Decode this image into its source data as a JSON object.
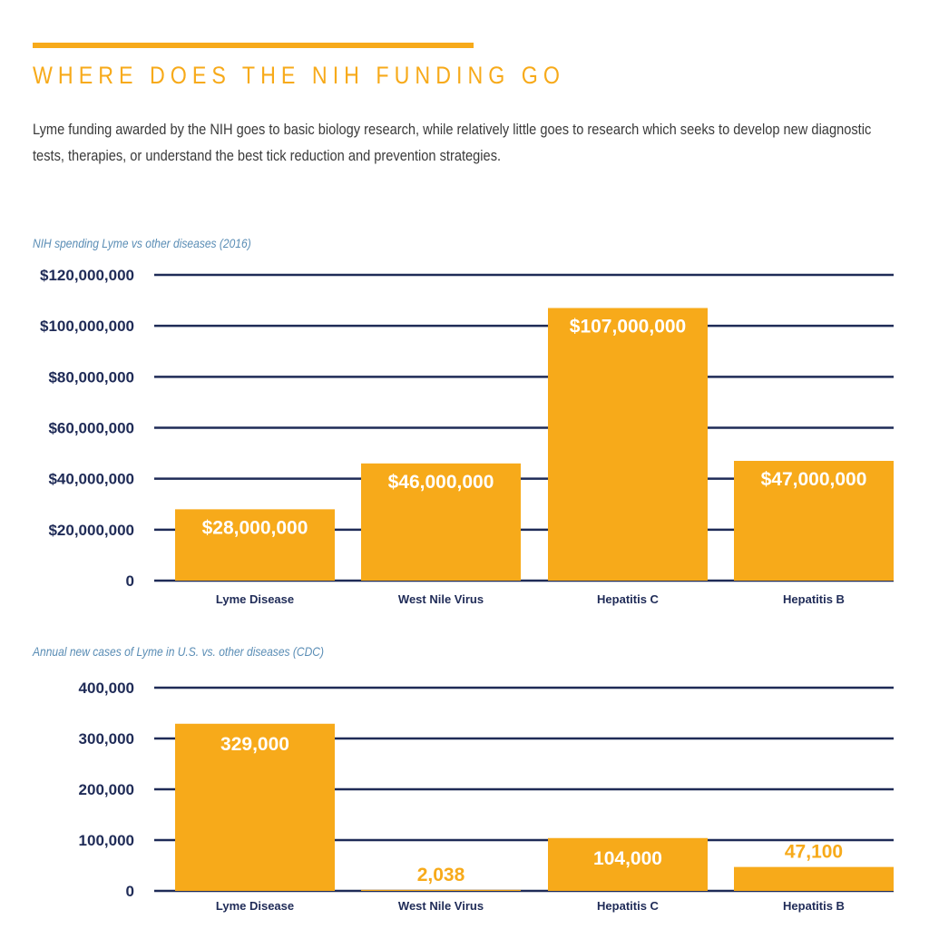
{
  "header": {
    "title": "WHERE DOES THE NIH FUNDING GO",
    "intro": "Lyme funding awarded by the NIH goes to basic biology research, while relatively little goes to research which seeks to develop new diagnostic tests, therapies, or understand the best tick reduction and prevention strategies."
  },
  "colors": {
    "accent": "#F7AA1A",
    "navy": "#1F2B57",
    "caption": "#5A8DB5",
    "tick_text": "#1F2B57",
    "data_label": "#FFFFFF",
    "data_label_dark": "#F7AA1A"
  },
  "chart_data": [
    {
      "type": "bar",
      "caption": "NIH spending Lyme vs other diseases (2016)",
      "categories": [
        "Lyme Disease",
        "West Nile Virus",
        "Hepatitis C",
        "Hepatitis B"
      ],
      "values": [
        28000000,
        46000000,
        107000000,
        47000000
      ],
      "value_labels": [
        "$28,000,000",
        "$46,000,000",
        "$107,000,000",
        "$47,000,000"
      ],
      "ylim": [
        0,
        120000000
      ],
      "yticks": [
        0,
        20000000,
        40000000,
        60000000,
        80000000,
        100000000,
        120000000
      ],
      "ytick_labels": [
        "0",
        "$20,000,000",
        "$40,000,000",
        "$60,000,000",
        "$80,000,000",
        "$100,000,000",
        "$120,000,000"
      ],
      "grid": true,
      "legend": "none"
    },
    {
      "type": "bar",
      "caption": "Annual new cases of Lyme in U.S. vs. other diseases (CDC)",
      "categories": [
        "Lyme Disease",
        "West Nile Virus",
        "Hepatitis C",
        "Hepatitis B"
      ],
      "values": [
        329000,
        2038,
        104000,
        47100
      ],
      "value_labels": [
        "329,000",
        "2,038",
        "104,000",
        "47,100"
      ],
      "ylim": [
        0,
        400000
      ],
      "yticks": [
        0,
        100000,
        200000,
        300000,
        400000
      ],
      "ytick_labels": [
        "0",
        "100,000",
        "200,000",
        "300,000",
        "400,000"
      ],
      "grid": true,
      "legend": "none"
    }
  ]
}
